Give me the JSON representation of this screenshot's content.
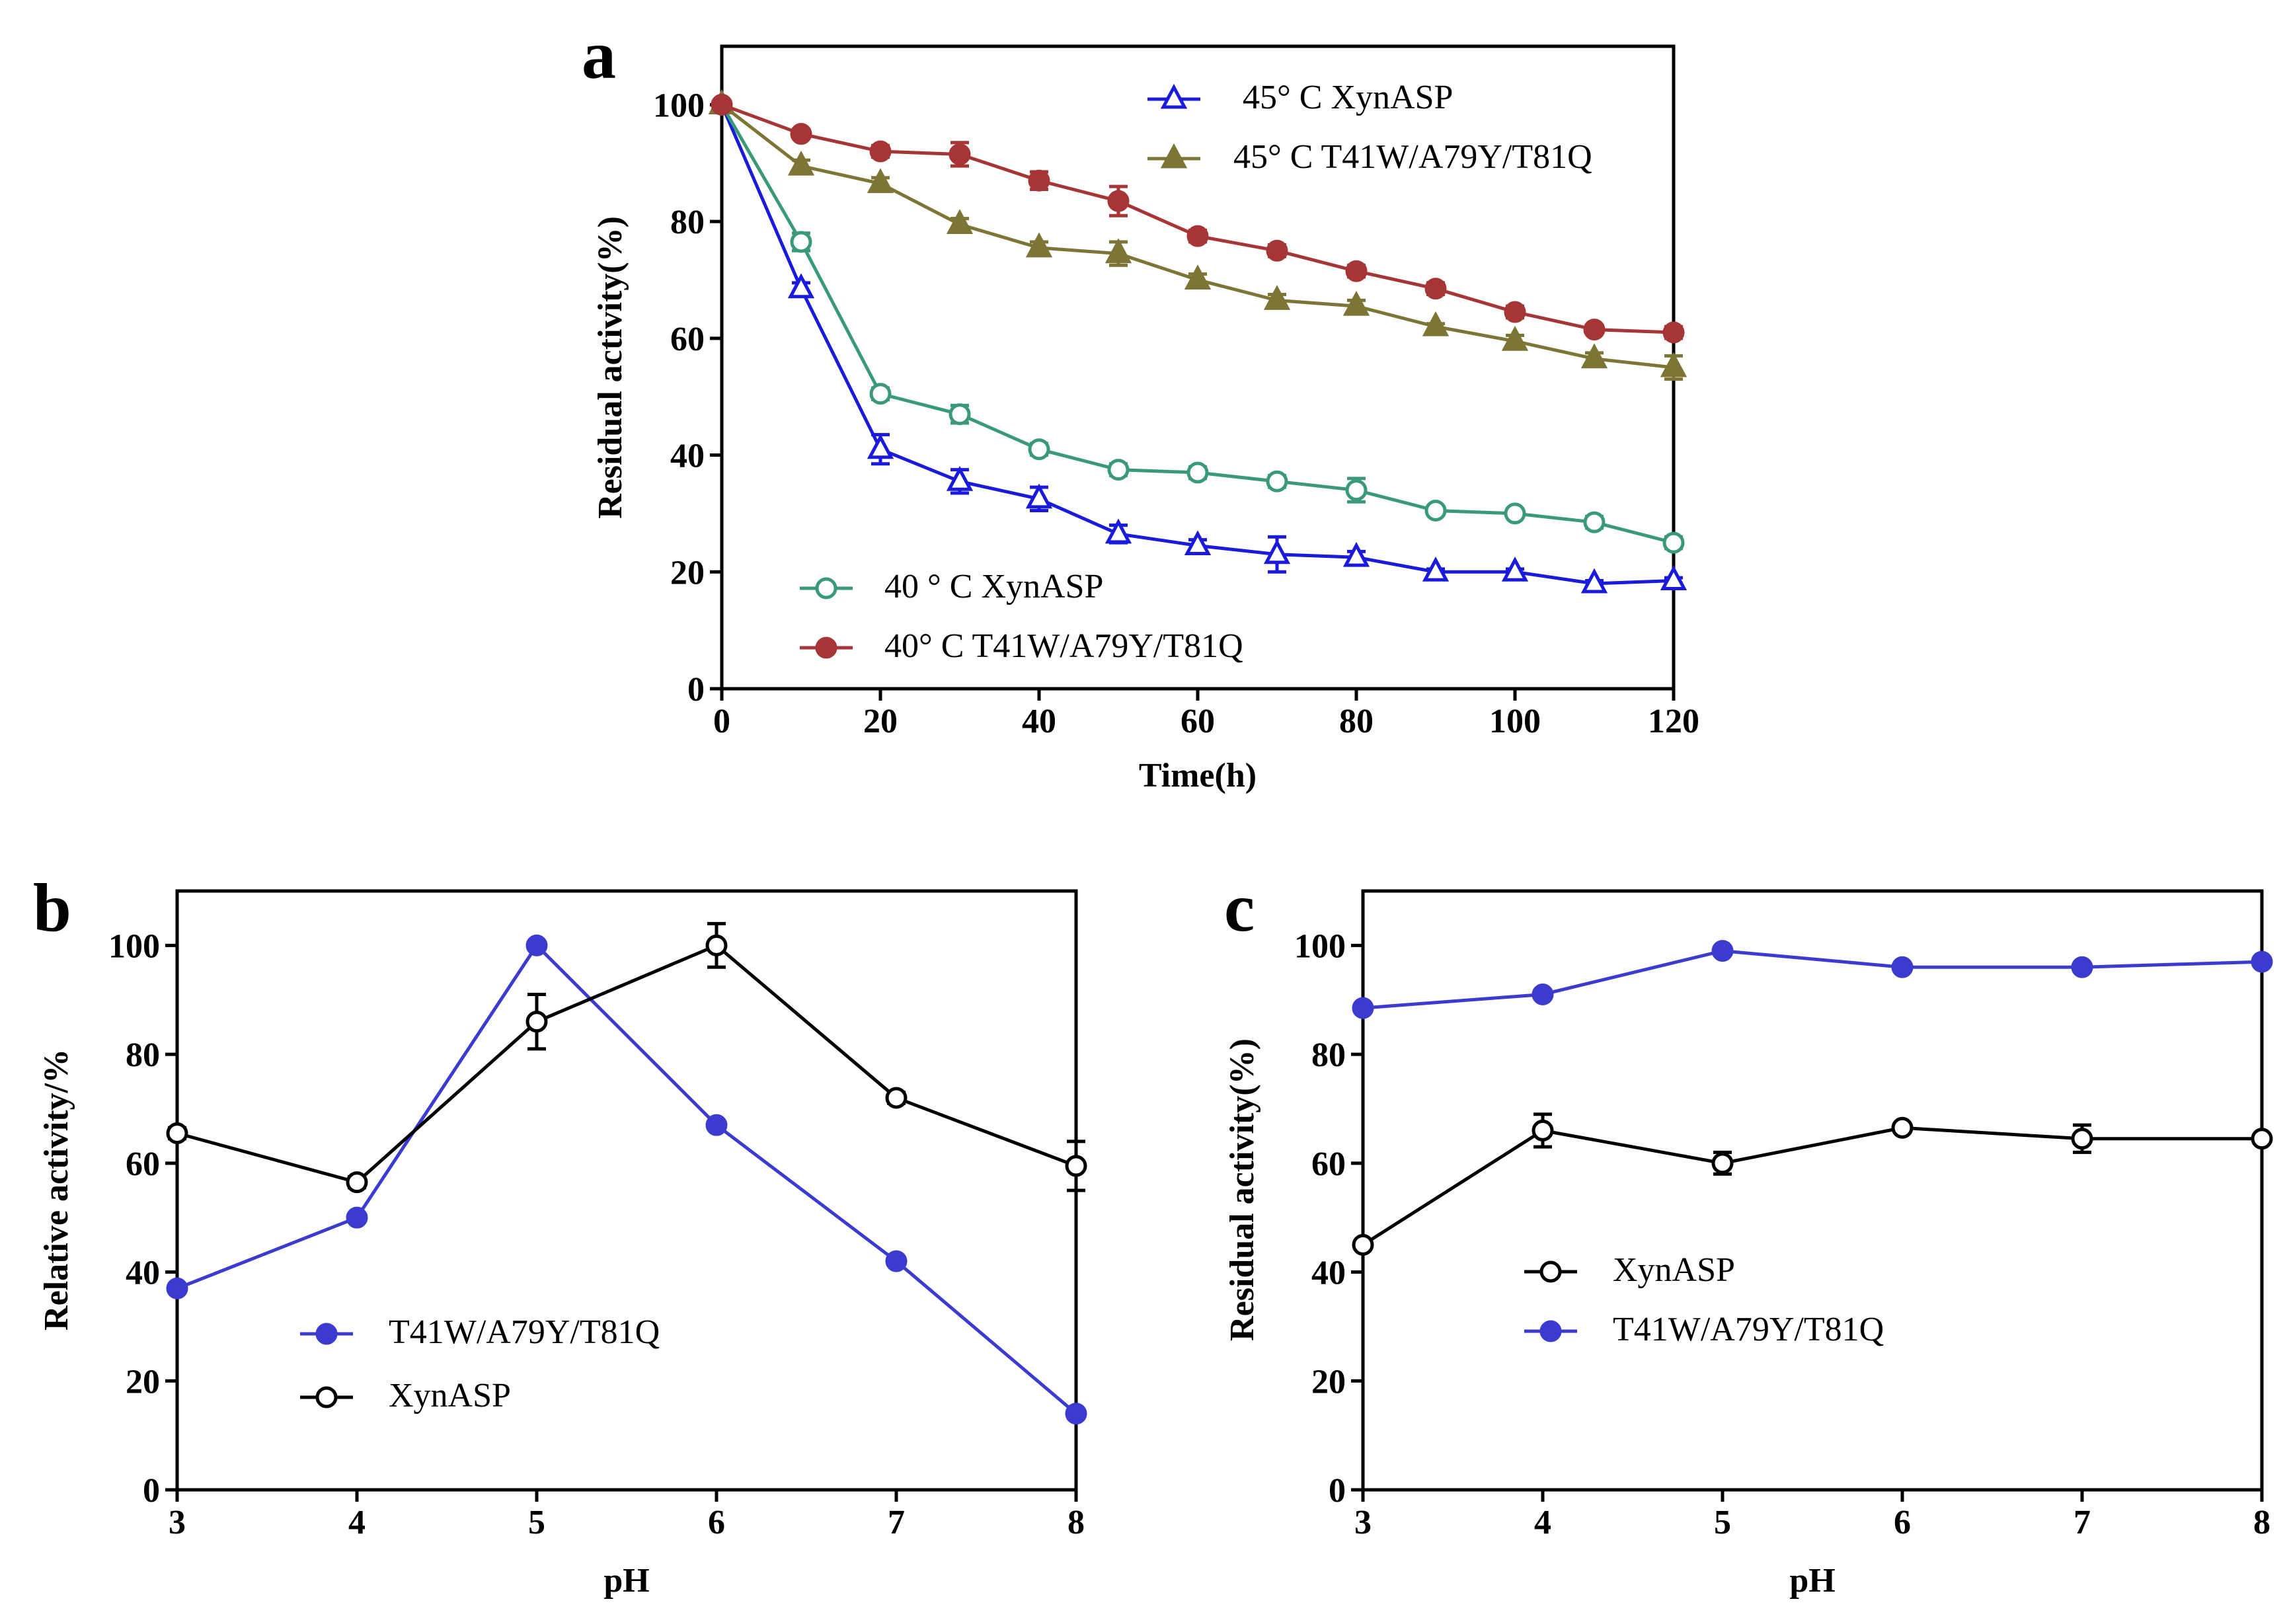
{
  "chart_data": [
    {
      "id": "a",
      "panel_label": "a",
      "type": "line",
      "xlabel": "Time(h)",
      "ylabel": "Residual activity(%)",
      "xlim": [
        0,
        120
      ],
      "ylim": [
        0,
        110
      ],
      "xticks": [
        "0",
        "20",
        "40",
        "60",
        "80",
        "100",
        "120"
      ],
      "yticks": [
        "0",
        "20",
        "40",
        "60",
        "80",
        "100"
      ],
      "x": [
        0,
        10,
        20,
        30,
        40,
        50,
        60,
        70,
        80,
        90,
        100,
        110,
        120
      ],
      "series": [
        {
          "name": "45° C XynASP",
          "color": "#1a1adc",
          "marker": "triangle-open",
          "values": [
            100,
            68.5,
            41,
            35.5,
            32.5,
            26.5,
            24.5,
            23,
            22.5,
            20,
            20,
            18,
            18.5
          ],
          "errors": [
            0,
            1,
            2.5,
            2,
            2,
            1.5,
            1,
            3,
            1,
            0.5,
            0.5,
            0.5,
            0.5
          ]
        },
        {
          "name": "45° C  T41W/A79Y/T81Q",
          "color": "#7d7535",
          "marker": "triangle-filled",
          "values": [
            100,
            89.5,
            86.5,
            79.5,
            75.5,
            74.5,
            70,
            66.5,
            65.5,
            62,
            59.5,
            56.5,
            55
          ],
          "errors": [
            0,
            1,
            1,
            1,
            1,
            2,
            1,
            1,
            1,
            0.5,
            1,
            1,
            2
          ]
        },
        {
          "name": "40 ° C XynASP",
          "color": "#3a9a78",
          "marker": "circle-open",
          "values": [
            100,
            76.5,
            50.5,
            47,
            41,
            37.5,
            37,
            35.5,
            34,
            30.5,
            30,
            28.5,
            25
          ],
          "errors": [
            0,
            1.5,
            1,
            1.5,
            1,
            1,
            1,
            1,
            2,
            0.5,
            0.5,
            1,
            1
          ]
        },
        {
          "name": "40° C T41W/A79Y/T81Q",
          "color": "#a83535",
          "marker": "circle-filled",
          "values": [
            100,
            95,
            92,
            91.5,
            87,
            83.5,
            77.5,
            75,
            71.5,
            68.5,
            64.5,
            61.5,
            61
          ],
          "errors": [
            0,
            0.5,
            1,
            2,
            1.5,
            2.5,
            1,
            1,
            1,
            1,
            1,
            0.5,
            1
          ]
        }
      ],
      "legend": [
        "45° C XynASP",
        "45° C  T41W/A79Y/T81Q",
        "40 ° C XynASP",
        "40° C T41W/A79Y/T81Q"
      ]
    },
    {
      "id": "b",
      "panel_label": "b",
      "type": "line",
      "xlabel": "pH",
      "ylabel": "Relative activity/%",
      "xlim": [
        3,
        8
      ],
      "ylim": [
        0,
        110
      ],
      "xticks": [
        "3",
        "4",
        "5",
        "6",
        "7",
        "8"
      ],
      "yticks": [
        "0",
        "20",
        "40",
        "60",
        "80",
        "100"
      ],
      "x": [
        3,
        4,
        5,
        6,
        7,
        8
      ],
      "series": [
        {
          "name": "T41W/A79Y/T81Q",
          "color": "#3b3bd0",
          "marker": "circle-filled",
          "values": [
            37,
            50,
            100,
            67,
            42,
            14
          ],
          "errors": [
            0,
            0,
            0,
            0,
            0,
            0
          ]
        },
        {
          "name": "XynASP",
          "color": "#000000",
          "marker": "circle-open",
          "values": [
            65.5,
            56.5,
            86,
            100,
            72,
            59.5
          ],
          "errors": [
            1,
            1,
            5,
            4,
            1,
            4.5
          ]
        }
      ],
      "legend": [
        "T41W/A79Y/T81Q",
        "XynASP"
      ]
    },
    {
      "id": "c",
      "panel_label": "c",
      "type": "line",
      "xlabel": "pH",
      "ylabel": "Residual activity(%)",
      "xlim": [
        3,
        8
      ],
      "ylim": [
        0,
        110
      ],
      "xticks": [
        "3",
        "4",
        "5",
        "6",
        "7",
        "8"
      ],
      "yticks": [
        "0",
        "20",
        "40",
        "60",
        "80",
        "100"
      ],
      "x": [
        3,
        4,
        5,
        6,
        7,
        8
      ],
      "series": [
        {
          "name": "XynASP",
          "color": "#000000",
          "marker": "circle-open",
          "values": [
            45,
            66,
            60,
            66.5,
            64.5,
            64.5
          ],
          "errors": [
            0.5,
            3,
            2,
            0.5,
            2.5,
            0.5
          ]
        },
        {
          "name": "T41W/A79Y/T81Q",
          "color": "#3b3bd0",
          "marker": "circle-filled",
          "values": [
            88.5,
            91,
            99,
            96,
            96,
            97
          ],
          "errors": [
            0,
            0,
            0,
            0,
            0,
            0
          ]
        }
      ],
      "legend": [
        " XynASP",
        "T41W/A79Y/T81Q"
      ]
    }
  ]
}
